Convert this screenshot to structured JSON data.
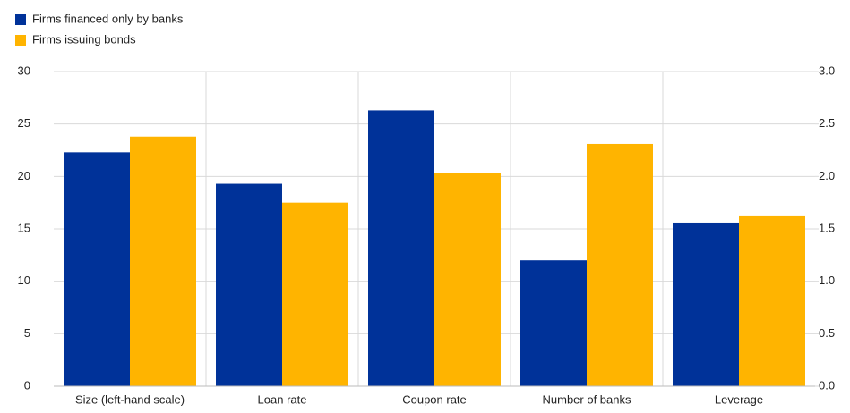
{
  "chart_data": {
    "type": "bar",
    "categories": [
      "Size (left-hand scale)",
      "Loan rate",
      "Coupon rate",
      "Number of banks",
      "Leverage"
    ],
    "category_axis": [
      "y",
      "y2",
      "y2",
      "y2",
      "y2"
    ],
    "series": [
      {
        "name": "Firms financed only by banks",
        "color": "#003299",
        "values": [
          22.3,
          1.93,
          2.63,
          1.2,
          1.56
        ]
      },
      {
        "name": "Firms issuing bonds",
        "color": "#ffb400",
        "values": [
          23.8,
          1.75,
          2.03,
          2.31,
          1.62
        ]
      }
    ],
    "ylim": [
      0,
      30
    ],
    "yticks": [
      0,
      5,
      10,
      15,
      20,
      25,
      30
    ],
    "y2lim": [
      0,
      3
    ],
    "y2ticks": [
      {
        "value": 0,
        "label": "0.0"
      },
      0.5,
      {
        "value": 1,
        "label": "1.0"
      },
      1.5,
      {
        "value": 2,
        "label": "2.0"
      },
      2.5,
      {
        "value": 3,
        "label": "3.0"
      }
    ],
    "grid": true,
    "legend": "top-left"
  }
}
